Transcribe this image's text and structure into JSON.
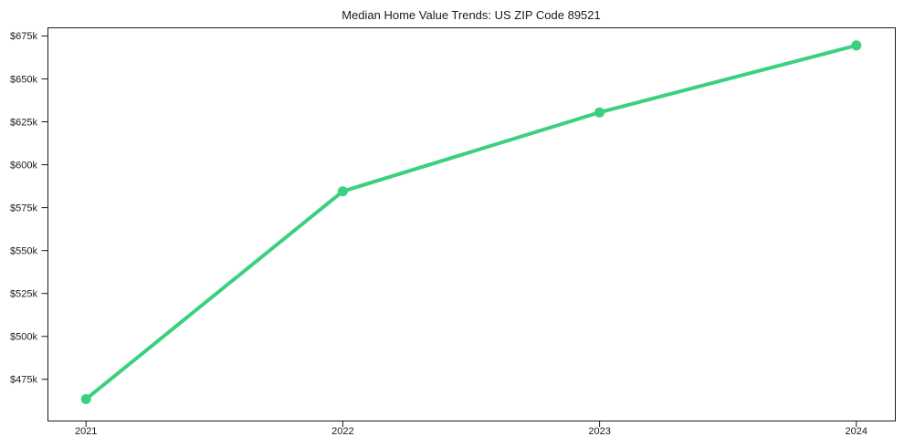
{
  "page": {
    "background": "#ffffff"
  },
  "chart_data": {
    "type": "line",
    "title": "Median Home Value Trends: US ZIP Code 89521",
    "xlabel": "",
    "ylabel": "",
    "grid": false,
    "legend_position": "none",
    "x": [
      2021,
      2022,
      2023,
      2024
    ],
    "x_tick_labels": [
      "2021",
      "2022",
      "2023",
      "2024"
    ],
    "y_ticks": [
      475000,
      500000,
      525000,
      550000,
      575000,
      600000,
      625000,
      650000,
      675000
    ],
    "y_tick_labels": [
      "$475k",
      "$500k",
      "$525k",
      "$550k",
      "$575k",
      "$600k",
      "$625k",
      "$650k",
      "$675k"
    ],
    "xlim": [
      2020.85,
      2024.15
    ],
    "ylim": [
      451000,
      680000
    ],
    "series": [
      {
        "name": "Median Home Value",
        "marker": "circle",
        "color": "#3bd080",
        "values": [
          463500,
          584500,
          630500,
          669500
        ]
      }
    ],
    "axis_color": "#1a1a1a",
    "text_color": "#1a1a1a",
    "tick_font_size": 11,
    "title_font_size": 13
  }
}
